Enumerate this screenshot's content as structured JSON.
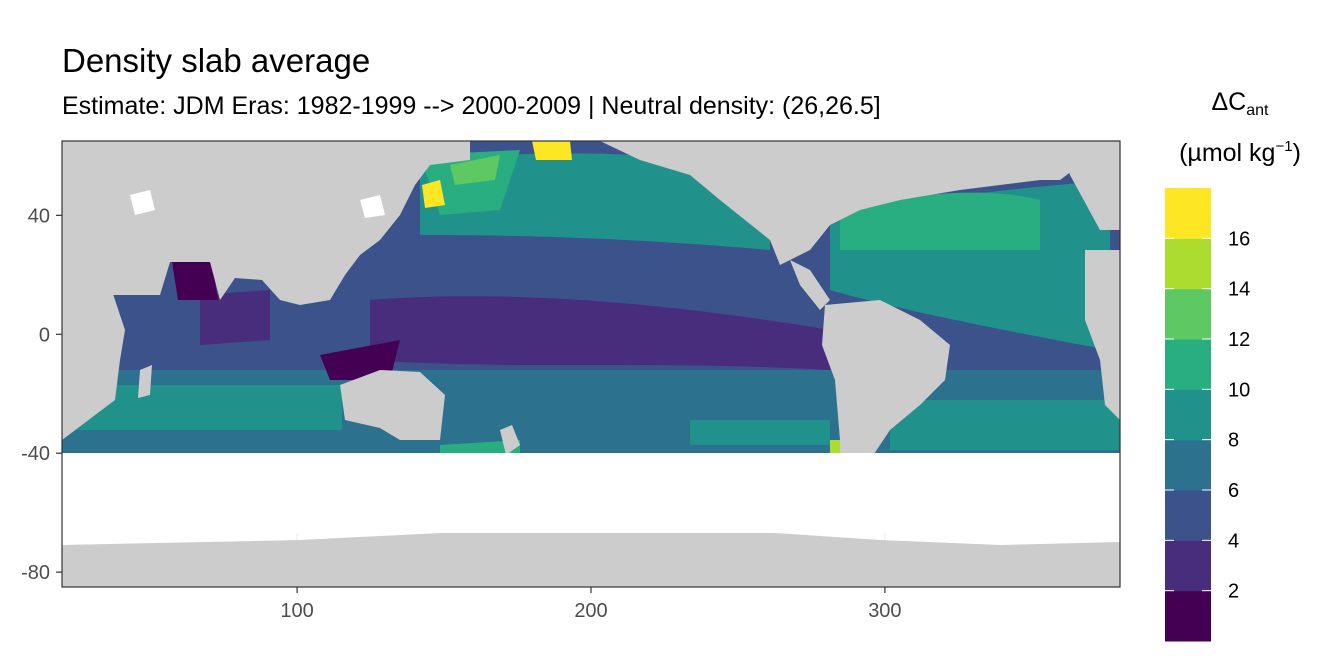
{
  "title": "Density slab average",
  "subtitle": "Estimate: JDM Eras: 1982-1999 --> 2000-2009 | Neutral density: (26,26.5]",
  "legend": {
    "symbol": "ΔC",
    "symbol_sub": "ant",
    "unit_pre": "(µmol kg",
    "unit_sup": "−1",
    "unit_post": ")",
    "bins": [
      "#440154",
      "#472d7b",
      "#3b528b",
      "#2c728e",
      "#21918c",
      "#28ae80",
      "#5ec962",
      "#addc30",
      "#fde725"
    ],
    "breaks": [
      "2",
      "4",
      "6",
      "8",
      "10",
      "12",
      "14",
      "16"
    ]
  },
  "axes": {
    "x_ticks": [
      {
        "value": 100,
        "label": "100"
      },
      {
        "value": 200,
        "label": "200"
      },
      {
        "value": 300,
        "label": "300"
      }
    ],
    "y_ticks": [
      {
        "value": 40,
        "label": "40"
      },
      {
        "value": 0,
        "label": "0"
      },
      {
        "value": -40,
        "label": "-40"
      },
      {
        "value": -80,
        "label": "-80"
      }
    ],
    "xlim": [
      20,
      380
    ],
    "ylim": [
      -85,
      65
    ]
  },
  "colors": {
    "land": "#cccccc",
    "no_data": "#ffffff",
    "panel_border": "#333333",
    "grid": "#ebebeb"
  }
}
